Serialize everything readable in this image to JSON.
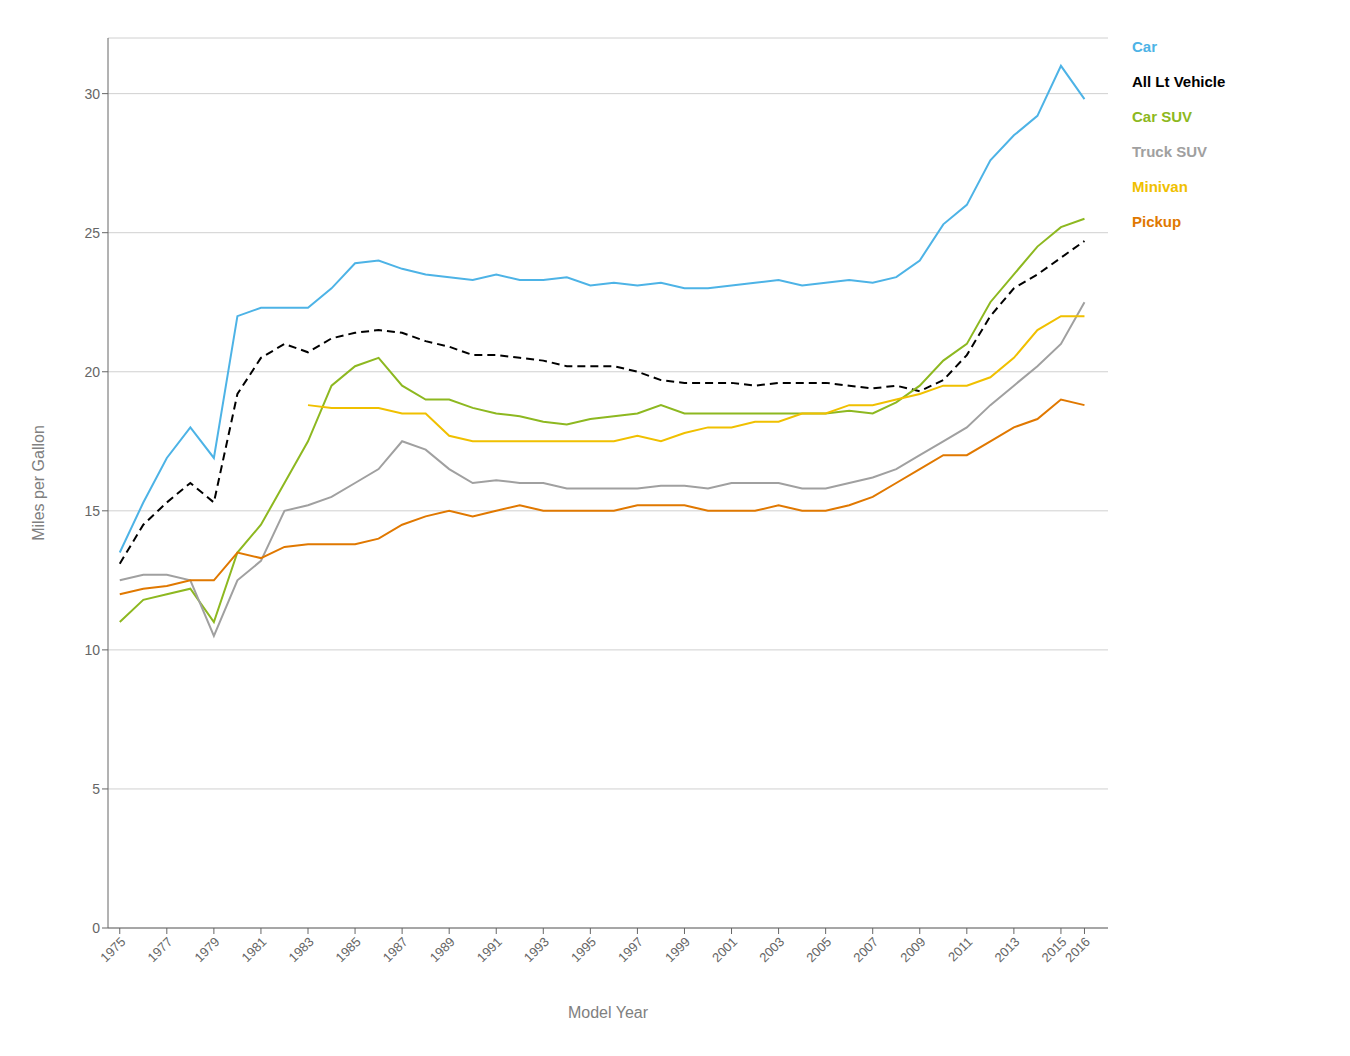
{
  "chart_data": {
    "type": "line",
    "xlabel": "Model Year",
    "ylabel": "Miles per Gallon",
    "x": [
      1975,
      1976,
      1977,
      1978,
      1979,
      1980,
      1981,
      1982,
      1983,
      1984,
      1985,
      1986,
      1987,
      1988,
      1989,
      1990,
      1991,
      1992,
      1993,
      1994,
      1995,
      1996,
      1997,
      1998,
      1999,
      2000,
      2001,
      2002,
      2003,
      2004,
      2005,
      2006,
      2007,
      2008,
      2009,
      2010,
      2011,
      2012,
      2013,
      2014,
      2015,
      2016
    ],
    "xlim": [
      1974.5,
      2017.0
    ],
    "xticks": [
      1975,
      1977,
      1979,
      1981,
      1983,
      1985,
      1987,
      1989,
      1991,
      1993,
      1995,
      1997,
      1999,
      2001,
      2003,
      2005,
      2007,
      2009,
      2011,
      2013,
      2015,
      2016
    ],
    "ylim": [
      0,
      32
    ],
    "yticks": [
      0,
      5,
      10,
      15,
      20,
      25,
      30
    ],
    "grid": "y",
    "legend": "right",
    "series": [
      {
        "name": "Car",
        "color": "#4db3e6",
        "line_style": "solid",
        "values": [
          13.5,
          15.3,
          16.9,
          18.0,
          16.9,
          22.0,
          22.3,
          22.3,
          22.3,
          23.0,
          23.9,
          24.0,
          23.7,
          23.5,
          23.4,
          23.3,
          23.5,
          23.3,
          23.3,
          23.4,
          23.1,
          23.2,
          23.1,
          23.2,
          23.0,
          23.0,
          23.1,
          23.2,
          23.3,
          23.1,
          23.2,
          23.3,
          23.2,
          23.4,
          24.0,
          25.3,
          26.0,
          27.6,
          28.5,
          29.2,
          31.0,
          29.8
        ]
      },
      {
        "name": "All Lt Vehicle",
        "color": "#000000",
        "line_style": "dashed",
        "values": [
          13.1,
          14.5,
          15.3,
          16.0,
          15.3,
          19.2,
          20.5,
          21.0,
          20.7,
          21.2,
          21.4,
          21.5,
          21.4,
          21.1,
          20.9,
          20.6,
          20.6,
          20.5,
          20.4,
          20.2,
          20.2,
          20.2,
          20.0,
          19.7,
          19.6,
          19.6,
          19.6,
          19.5,
          19.6,
          19.6,
          19.6,
          19.5,
          19.4,
          19.5,
          19.3,
          19.7,
          20.6,
          22.0,
          23.0,
          23.5,
          24.1,
          24.7
        ]
      },
      {
        "name": "Car SUV",
        "color": "#8db820",
        "line_style": "solid",
        "values": [
          11.0,
          11.8,
          12.0,
          12.2,
          11.0,
          13.5,
          14.5,
          16.0,
          17.5,
          19.5,
          20.2,
          20.5,
          19.5,
          19.0,
          19.0,
          18.7,
          18.5,
          18.4,
          18.2,
          18.1,
          18.3,
          18.4,
          18.5,
          18.8,
          18.5,
          18.5,
          18.5,
          18.5,
          18.5,
          18.5,
          18.5,
          18.6,
          18.5,
          18.9,
          19.5,
          20.4,
          21.0,
          22.5,
          23.5,
          24.5,
          25.2,
          25.5
        ]
      },
      {
        "name": "Truck SUV",
        "color": "#a0a0a0",
        "line_style": "solid",
        "values": [
          12.5,
          12.7,
          12.7,
          12.5,
          10.5,
          12.5,
          13.2,
          15.0,
          15.2,
          15.5,
          16.0,
          16.5,
          17.5,
          17.2,
          16.5,
          16.0,
          16.1,
          16.0,
          16.0,
          15.8,
          15.8,
          15.8,
          15.8,
          15.9,
          15.9,
          15.8,
          16.0,
          16.0,
          16.0,
          15.8,
          15.8,
          16.0,
          16.2,
          16.5,
          17.0,
          17.5,
          18.0,
          18.8,
          19.5,
          20.2,
          21.0,
          22.5
        ]
      },
      {
        "name": "Minivan",
        "color": "#f0c000",
        "line_style": "solid",
        "values": [
          null,
          null,
          null,
          null,
          null,
          null,
          null,
          null,
          18.8,
          18.7,
          18.7,
          18.7,
          18.5,
          18.5,
          17.7,
          17.5,
          17.5,
          17.5,
          17.5,
          17.5,
          17.5,
          17.5,
          17.7,
          17.5,
          17.8,
          18.0,
          18.0,
          18.2,
          18.2,
          18.5,
          18.5,
          18.8,
          18.8,
          19.0,
          19.2,
          19.5,
          19.5,
          19.8,
          20.5,
          21.5,
          22.0,
          22.0
        ]
      },
      {
        "name": "Pickup",
        "color": "#e07800",
        "line_style": "solid",
        "values": [
          12.0,
          12.2,
          12.3,
          12.5,
          12.5,
          13.5,
          13.3,
          13.7,
          13.8,
          13.8,
          13.8,
          14.0,
          14.5,
          14.8,
          15.0,
          14.8,
          15.0,
          15.2,
          15.0,
          15.0,
          15.0,
          15.0,
          15.2,
          15.2,
          15.2,
          15.0,
          15.0,
          15.0,
          15.2,
          15.0,
          15.0,
          15.2,
          15.5,
          16.0,
          16.5,
          17.0,
          17.0,
          17.5,
          18.0,
          18.3,
          19.0,
          18.8
        ]
      }
    ]
  }
}
